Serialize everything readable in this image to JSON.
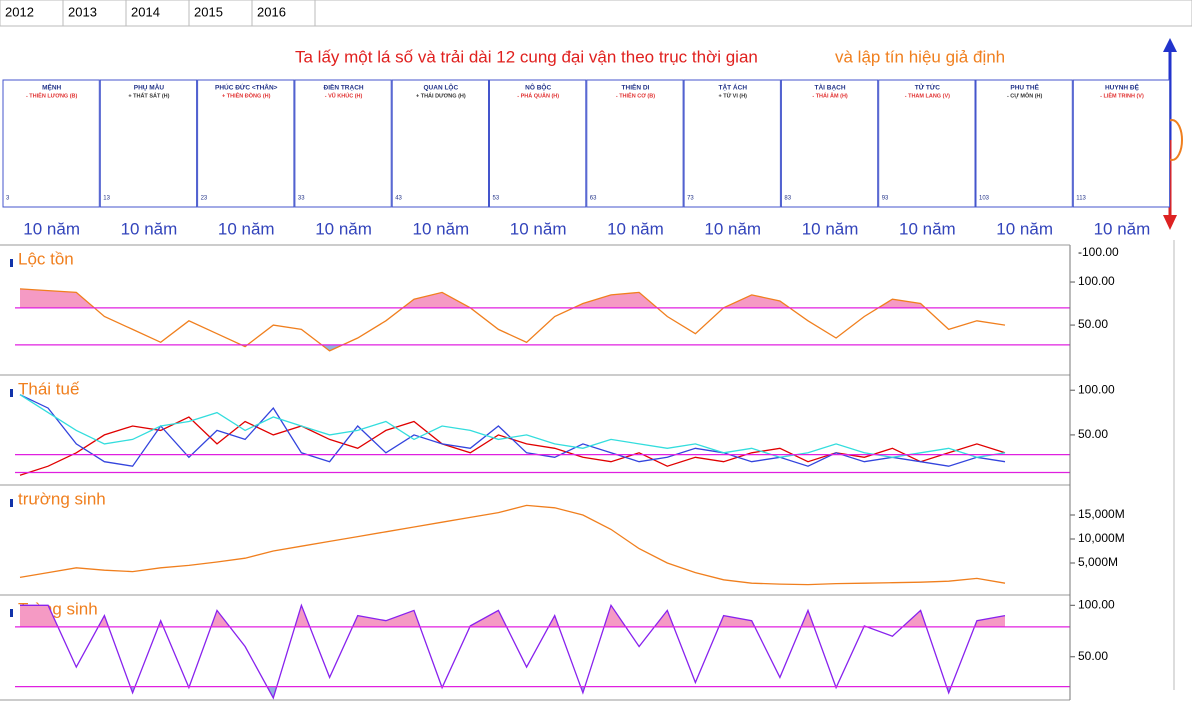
{
  "years": [
    "2012",
    "2013",
    "2014",
    "2015",
    "2016"
  ],
  "headline": "Ta lấy một lá số và trải dài 12 cung đại vận theo trục thời gian",
  "headline_extra": "và lập tín hiệu giả định",
  "palaces": [
    {
      "name": "MỆNH",
      "star": "- THIÊN LƯƠNG (B)",
      "age": "3"
    },
    {
      "name": "PHỤ MẪU",
      "star": "+ THẤT SÁT (H)",
      "age": "13"
    },
    {
      "name": "PHÚC ĐỨC <THÂN>",
      "star": "+ THIÊN ĐỒNG (H)",
      "age": "23"
    },
    {
      "name": "ĐIỀN TRẠCH",
      "star": "- VŨ KHÚC (H)",
      "age": "33"
    },
    {
      "name": "QUAN LỘC",
      "star": "+ THÁI DƯƠNG (H)",
      "age": "43"
    },
    {
      "name": "NÔ BỘC",
      "star": "- PHÁ QUÂN (H)",
      "age": "53"
    },
    {
      "name": "THIÊN DI",
      "star": "- THIÊN CƠ (B)",
      "age": "63"
    },
    {
      "name": "TẬT ÁCH",
      "star": "+ TỬ VI (H)",
      "age": "73"
    },
    {
      "name": "TÀI BẠCH",
      "star": "- THÁI ÂM (H)",
      "age": "83"
    },
    {
      "name": "TỬ TỨC",
      "star": "- THAM LANG (V)",
      "age": "93"
    },
    {
      "name": "PHU THÊ",
      "star": "- CỰ MÔN (H)",
      "age": "103"
    },
    {
      "name": "HUYNH ĐỆ",
      "star": "- LIÊM TRINH (V)",
      "age": "113"
    }
  ],
  "decades": [
    "10 năm",
    "10 năm",
    "10 năm",
    "10 năm",
    "10 năm",
    "10 năm",
    "10 năm",
    "10 năm",
    "10 năm",
    "10 năm",
    "10 năm",
    "10 năm"
  ],
  "chart_data": [
    {
      "type": "line",
      "title": "Lộc tồn",
      "top_label": "-100.00",
      "categories": [
        null,
        null,
        null,
        null,
        null,
        null,
        null,
        null,
        null,
        null,
        null,
        null,
        null,
        null,
        null,
        null,
        null,
        null,
        null,
        null,
        null,
        null,
        null,
        null,
        null,
        null,
        null,
        null,
        null,
        null,
        null,
        null,
        null,
        null,
        null,
        null
      ],
      "series": [
        {
          "name": "Lộc tồn",
          "color": "#f07f1e",
          "values": [
            92,
            90,
            88,
            60,
            45,
            30,
            55,
            40,
            25,
            50,
            45,
            20,
            35,
            55,
            80,
            88,
            70,
            45,
            30,
            60,
            75,
            85,
            88,
            60,
            40,
            70,
            85,
            78,
            55,
            35,
            60,
            80,
            75,
            45,
            55,
            50
          ]
        }
      ],
      "ylim": [
        -8,
        143
      ],
      "yticks": [
        {
          "value": 50,
          "label": "50.00"
        },
        {
          "value": 100,
          "label": "100.00"
        }
      ],
      "thresholds": [
        70,
        27
      ],
      "threshold_color": "#e020e0",
      "fill_above_color": "#f59ac4",
      "fill_below_color": "#8fb3e0"
    },
    {
      "type": "line",
      "title": "Thái tuế",
      "categories": [
        null,
        null,
        null,
        null,
        null,
        null,
        null,
        null,
        null,
        null,
        null,
        null,
        null,
        null,
        null,
        null,
        null,
        null,
        null,
        null,
        null,
        null,
        null,
        null,
        null,
        null,
        null,
        null,
        null,
        null,
        null,
        null,
        null,
        null,
        null,
        null
      ],
      "series": [
        {
          "name": "red",
          "color": "#e00000",
          "values": [
            5,
            15,
            30,
            50,
            60,
            55,
            70,
            40,
            65,
            50,
            60,
            45,
            35,
            55,
            65,
            40,
            30,
            50,
            40,
            35,
            25,
            20,
            30,
            15,
            25,
            20,
            30,
            35,
            20,
            30,
            25,
            35,
            20,
            30,
            40,
            30
          ]
        },
        {
          "name": "blue",
          "color": "#3344dd",
          "values": [
            95,
            80,
            40,
            20,
            15,
            60,
            25,
            55,
            45,
            80,
            30,
            20,
            60,
            30,
            50,
            40,
            35,
            60,
            30,
            25,
            40,
            30,
            20,
            25,
            35,
            30,
            20,
            25,
            15,
            30,
            20,
            25,
            20,
            15,
            25,
            20
          ]
        },
        {
          "name": "cyan",
          "color": "#33dddd",
          "values": [
            95,
            75,
            55,
            40,
            45,
            60,
            65,
            75,
            55,
            70,
            60,
            50,
            55,
            65,
            45,
            60,
            55,
            45,
            50,
            40,
            35,
            45,
            40,
            35,
            40,
            30,
            35,
            25,
            30,
            40,
            30,
            25,
            30,
            35,
            25,
            30
          ]
        }
      ],
      "ylim": [
        -6,
        117
      ],
      "yticks": [
        {
          "value": 50,
          "label": "50.00"
        },
        {
          "value": 100,
          "label": "100.00"
        }
      ],
      "thresholds": [
        28,
        8
      ],
      "threshold_color": "#e020e0"
    },
    {
      "type": "line",
      "title": "trường sinh",
      "categories": [
        null,
        null,
        null,
        null,
        null,
        null,
        null,
        null,
        null,
        null,
        null,
        null,
        null,
        null,
        null,
        null,
        null,
        null,
        null,
        null,
        null,
        null,
        null,
        null,
        null,
        null,
        null,
        null,
        null,
        null,
        null,
        null,
        null,
        null,
        null,
        null
      ],
      "series": [
        {
          "name": "trường sinh",
          "color": "#f07f1e",
          "values": [
            2000,
            3000,
            4000,
            3500,
            3200,
            4000,
            4500,
            5200,
            6000,
            7500,
            8500,
            9500,
            10500,
            11500,
            12500,
            13500,
            14500,
            15500,
            17000,
            16500,
            15000,
            12000,
            8000,
            5000,
            3000,
            1500,
            800,
            600,
            500,
            700,
            800,
            900,
            1000,
            1200,
            1800,
            800
          ]
        }
      ],
      "ylim": [
        -1667,
        21250
      ],
      "yticks": [
        {
          "value": 5000,
          "label": "5,000M"
        },
        {
          "value": 10000,
          "label": "10,000M"
        },
        {
          "value": 15000,
          "label": "15,000M"
        }
      ]
    },
    {
      "type": "line",
      "title": "Tràng sinh",
      "categories": [
        null,
        null,
        null,
        null,
        null,
        null,
        null,
        null,
        null,
        null,
        null,
        null,
        null,
        null,
        null,
        null,
        null,
        null,
        null,
        null,
        null,
        null,
        null,
        null,
        null,
        null,
        null,
        null,
        null,
        null,
        null,
        null,
        null,
        null,
        null,
        null
      ],
      "series": [
        {
          "name": "Tràng sinh",
          "color": "#8822ee",
          "values": [
            100,
            100,
            40,
            90,
            15,
            85,
            20,
            95,
            60,
            10,
            100,
            30,
            90,
            85,
            95,
            20,
            80,
            95,
            40,
            90,
            15,
            100,
            60,
            95,
            25,
            90,
            85,
            30,
            95,
            20,
            80,
            70,
            95,
            15,
            85,
            90
          ]
        }
      ],
      "ylim": [
        8,
        110
      ],
      "yticks": [
        {
          "value": 50,
          "label": "50.00"
        },
        {
          "value": 100,
          "label": "100.00"
        }
      ],
      "thresholds": [
        79,
        21
      ],
      "threshold_color": "#e020e0",
      "fill_above_color": "#f59ac4",
      "fill_below_color": "#8fb3e0"
    }
  ]
}
